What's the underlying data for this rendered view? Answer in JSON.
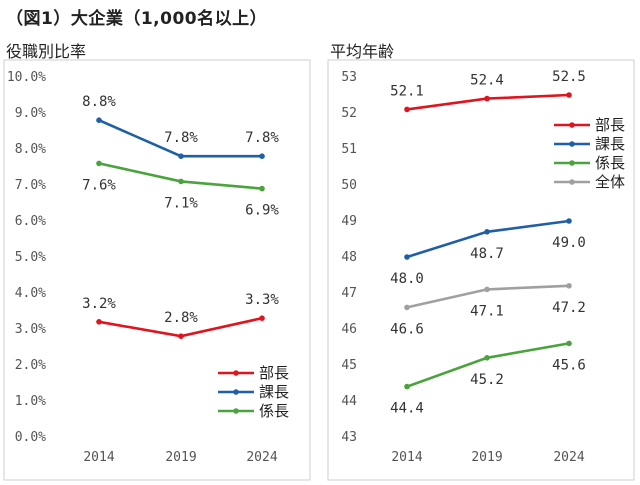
{
  "figure_title": "（図1）大企業（1,000名以上）",
  "colors": {
    "bucho": "#e0141e",
    "kacho": "#1f5fa6",
    "kakaricho": "#4aa33c",
    "zentai": "#a0a0a0"
  },
  "chart_data": [
    {
      "type": "line",
      "title": "役職別比率",
      "x": [
        "2014",
        "2019",
        "2024"
      ],
      "ylim": [
        0,
        10
      ],
      "yticks": [
        "0.0%",
        "1.0%",
        "2.0%",
        "3.0%",
        "4.0%",
        "5.0%",
        "6.0%",
        "7.0%",
        "8.0%",
        "9.0%",
        "10.0%"
      ],
      "grid": false,
      "legend": "bottom-right",
      "series": [
        {
          "name": "部長",
          "color": "#e0141e",
          "values": [
            3.2,
            2.8,
            3.3
          ],
          "labels": [
            "3.2%",
            "2.8%",
            "3.3%"
          ],
          "label_pos": [
            "above",
            "above",
            "above"
          ]
        },
        {
          "name": "課長",
          "color": "#1f5fa6",
          "values": [
            8.8,
            7.8,
            7.8
          ],
          "labels": [
            "8.8%",
            "7.8%",
            "7.8%"
          ],
          "label_pos": [
            "above",
            "above",
            "above"
          ]
        },
        {
          "name": "係長",
          "color": "#4aa33c",
          "values": [
            7.6,
            7.1,
            6.9
          ],
          "labels": [
            "7.6%",
            "7.1%",
            "6.9%"
          ],
          "label_pos": [
            "below",
            "below",
            "below"
          ]
        }
      ]
    },
    {
      "type": "line",
      "title": "平均年齢",
      "x": [
        "2014",
        "2019",
        "2024"
      ],
      "ylim": [
        43,
        53
      ],
      "yticks": [
        "43",
        "44",
        "45",
        "46",
        "47",
        "48",
        "49",
        "50",
        "51",
        "52",
        "53"
      ],
      "grid": false,
      "legend": "top-right",
      "series": [
        {
          "name": "部長",
          "color": "#e0141e",
          "values": [
            52.1,
            52.4,
            52.5
          ],
          "labels": [
            "52.1",
            "52.4",
            "52.5"
          ],
          "label_pos": [
            "above",
            "above",
            "above"
          ]
        },
        {
          "name": "課長",
          "color": "#1f5fa6",
          "values": [
            48.0,
            48.7,
            49.0
          ],
          "labels": [
            "48.0",
            "48.7",
            "49.0"
          ],
          "label_pos": [
            "below",
            "below",
            "below"
          ]
        },
        {
          "name": "係長",
          "color": "#4aa33c",
          "values": [
            44.4,
            45.2,
            45.6
          ],
          "labels": [
            "44.4",
            "45.2",
            "45.6"
          ],
          "label_pos": [
            "below",
            "below",
            "below"
          ]
        },
        {
          "name": "全体",
          "color": "#a0a0a0",
          "values": [
            46.6,
            47.1,
            47.2
          ],
          "labels": [
            "46.6",
            "47.1",
            "47.2"
          ],
          "label_pos": [
            "below",
            "below",
            "below"
          ]
        }
      ]
    }
  ]
}
